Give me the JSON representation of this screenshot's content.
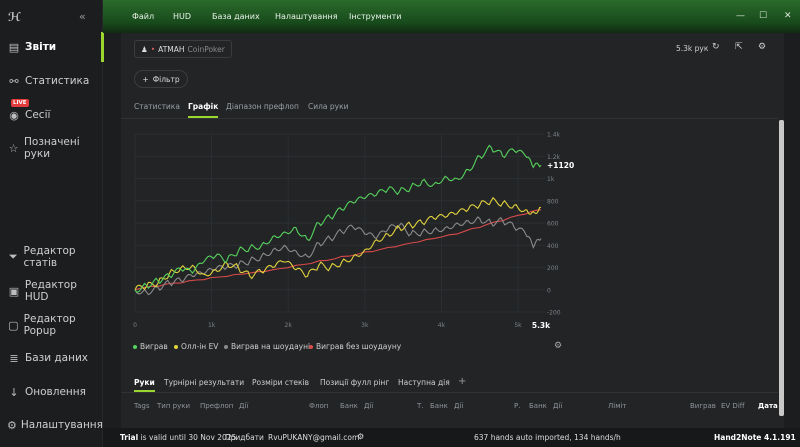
{
  "app": {
    "name": "Hand2Note 4.1.191"
  },
  "sidebar": {
    "items": [
      {
        "id": "reports",
        "label": "Звіти",
        "icon": "reports-icon",
        "active": true
      },
      {
        "id": "stats",
        "label": "Статистика",
        "icon": "nodes-icon"
      },
      {
        "id": "sessions",
        "label": "Сесії",
        "icon": "broadcast-icon",
        "badge": "LIVE"
      },
      {
        "id": "marked",
        "label": "Позначені руки",
        "icon": "star-icon"
      },
      {
        "id": "stat-editor",
        "label": "Редактор статів",
        "icon": "funnel-icon"
      },
      {
        "id": "hud-editor",
        "label": "Редактор HUD",
        "icon": "hud-icon"
      },
      {
        "id": "popup-editor",
        "label": "Редактор Popup",
        "icon": "popup-icon"
      },
      {
        "id": "databases",
        "label": "Бази даних",
        "icon": "database-icon"
      },
      {
        "id": "updates",
        "label": "Оновлення",
        "icon": "download-icon"
      },
      {
        "id": "settings",
        "label": "Налаштування",
        "icon": "gear-icon"
      }
    ]
  },
  "topmenu": [
    "Файл",
    "HUD",
    "База даних",
    "Налаштування",
    "Інструменти"
  ],
  "source": {
    "player": "ATMAH",
    "site": "CoinPoker"
  },
  "header": {
    "hands": "5.3k рук"
  },
  "filter": {
    "label": "Фільтр"
  },
  "tabs": [
    "Статистика",
    "Графік",
    "Діапазон префлоп",
    "Сила руки"
  ],
  "chart_data": {
    "type": "line",
    "x_ticks": [
      "0",
      "1k",
      "2k",
      "3k",
      "4k",
      "5k"
    ],
    "x_end_label": "5.3k",
    "y_ticks": [
      "1.4k",
      "1.2k",
      "1k",
      "800",
      "600",
      "400",
      "200",
      "0",
      "-200"
    ],
    "ylim": [
      -200,
      1400
    ],
    "xlim": [
      0,
      5300
    ],
    "end_label": "+1120",
    "series": [
      {
        "name": "Виграв",
        "color": "#56d25c",
        "x": [
          0,
          150,
          300,
          450,
          600,
          750,
          900,
          1050,
          1200,
          1350,
          1500,
          1650,
          1800,
          1950,
          2100,
          2250,
          2400,
          2550,
          2700,
          2850,
          3000,
          3150,
          3300,
          3450,
          3600,
          3750,
          3900,
          4050,
          4200,
          4350,
          4500,
          4650,
          4800,
          4950,
          5100,
          5200,
          5300
        ],
        "y": [
          0,
          40,
          80,
          120,
          180,
          150,
          250,
          300,
          260,
          350,
          380,
          400,
          480,
          520,
          560,
          450,
          600,
          650,
          720,
          780,
          820,
          850,
          900,
          880,
          920,
          980,
          950,
          1020,
          1000,
          1080,
          1200,
          1280,
          1200,
          1250,
          1200,
          1100,
          1120
        ]
      },
      {
        "name": "Олл-ін EV",
        "color": "#e2d23c",
        "x": [
          0,
          150,
          300,
          450,
          600,
          750,
          900,
          1050,
          1200,
          1350,
          1500,
          1650,
          1800,
          1950,
          2100,
          2250,
          2400,
          2550,
          2700,
          2850,
          3000,
          3150,
          3300,
          3450,
          3600,
          3750,
          3900,
          4050,
          4200,
          4350,
          4500,
          4650,
          4800,
          4950,
          5100,
          5200,
          5300
        ],
        "y": [
          0,
          30,
          60,
          150,
          200,
          220,
          140,
          180,
          240,
          200,
          120,
          160,
          200,
          250,
          180,
          120,
          220,
          200,
          250,
          300,
          360,
          450,
          500,
          560,
          580,
          600,
          640,
          650,
          680,
          720,
          760,
          800,
          780,
          760,
          720,
          700,
          740
        ]
      },
      {
        "name": "Виграв на шоудауні",
        "color": "#8a8a8a",
        "x": [
          0,
          150,
          300,
          450,
          600,
          750,
          900,
          1050,
          1200,
          1350,
          1500,
          1650,
          1800,
          1950,
          2100,
          2250,
          2400,
          2550,
          2700,
          2850,
          3000,
          3150,
          3300,
          3450,
          3600,
          3750,
          3900,
          4050,
          4200,
          4350,
          4500,
          4650,
          4800,
          4950,
          5100,
          5200,
          5300
        ],
        "y": [
          0,
          -20,
          20,
          60,
          80,
          120,
          140,
          180,
          200,
          220,
          260,
          300,
          360,
          400,
          350,
          300,
          420,
          460,
          520,
          560,
          500,
          460,
          540,
          580,
          500,
          520,
          540,
          560,
          600,
          620,
          640,
          600,
          620,
          560,
          500,
          380,
          460
        ]
      },
      {
        "name": "Виграв без шоудауну",
        "color": "#d94a4a",
        "x": [
          0,
          300,
          600,
          900,
          1200,
          1500,
          1800,
          2100,
          2400,
          2700,
          3000,
          3300,
          3600,
          3900,
          4200,
          4500,
          4800,
          5100,
          5300
        ],
        "y": [
          0,
          30,
          60,
          90,
          120,
          150,
          180,
          220,
          260,
          300,
          340,
          380,
          420,
          460,
          500,
          560,
          620,
          680,
          720
        ]
      }
    ]
  },
  "bottom_tabs": [
    "Руки",
    "Турнірні результати",
    "Розміри стеків",
    "Позиції фулл рінг",
    "Наступна дія"
  ],
  "columns": [
    "Tags",
    "Тип руки",
    "Префлоп",
    "Дії",
    "Флоп",
    "Банк",
    "Дії",
    "Т.",
    "Банк",
    "Дії",
    "Р.",
    "Банк",
    "Дії",
    "Ліміт",
    "Виграв",
    "EV Diff",
    "Дата"
  ],
  "status": {
    "trial_label": "Trial",
    "trial_text": "is valid until 30 Nov 2025",
    "buy": "Придбати",
    "email": "RvuPUKANY@gmail.com",
    "imported": "637 hands auto imported, 134 hands/h",
    "version": "Hand2Note 4.1.191"
  }
}
